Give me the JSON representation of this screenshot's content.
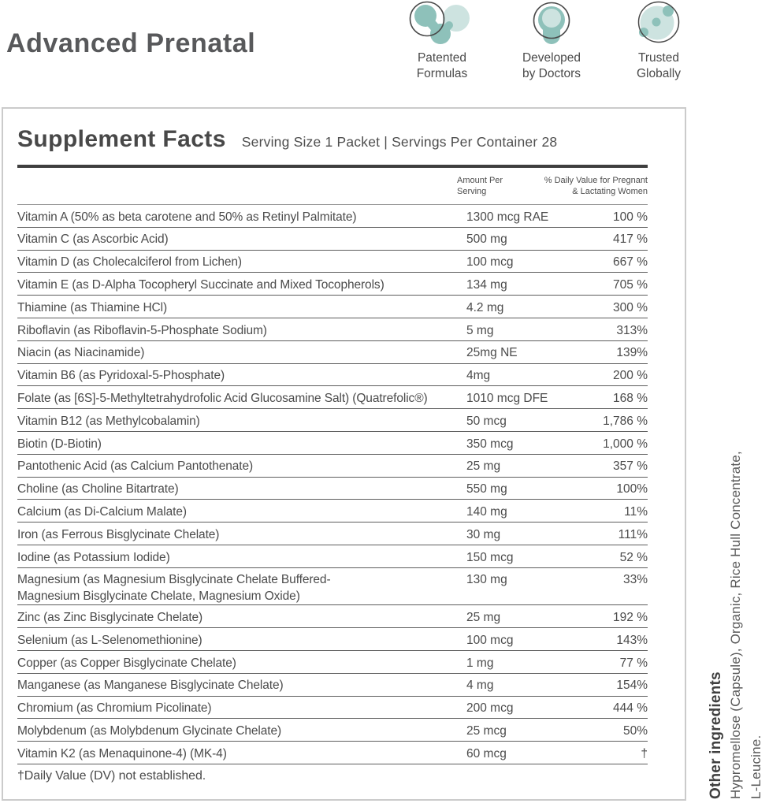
{
  "page": {
    "title": "Advanced Prenatal"
  },
  "badges": [
    {
      "icon": "molecule-icon",
      "label": "Patented Formulas"
    },
    {
      "icon": "doctor-icon",
      "label": "Developed by Doctors"
    },
    {
      "icon": "globe-icon",
      "label": "Trusted Globally"
    }
  ],
  "panel": {
    "title": "Supplement Facts",
    "serving_info": "Serving Size 1 Packet | Servings Per Container 28",
    "columns": {
      "amount_line1": "Amount Per",
      "amount_line2": "Serving",
      "dv_line1": "% Daily Value for Pregnant",
      "dv_line2": "& Lactating Women"
    },
    "rows": [
      {
        "name": "Vitamin A (50% as beta carotene and 50% as Retinyl Palmitate)",
        "amount": "1300 mcg RAE",
        "dv": "100 %"
      },
      {
        "name": "Vitamin C (as Ascorbic Acid)",
        "amount": "500 mg",
        "dv": "417 %"
      },
      {
        "name": "Vitamin D (as Cholecalciferol from Lichen)",
        "amount": "100 mcg",
        "dv": "667 %"
      },
      {
        "name": "Vitamin E (as D-Alpha Tocopheryl Succinate and Mixed Tocopherols)",
        "amount": "134 mg",
        "dv": "705 %"
      },
      {
        "name": "Thiamine (as Thiamine HCl)",
        "amount": "4.2 mg",
        "dv": "300 %"
      },
      {
        "name": "Riboflavin (as Riboflavin-5-Phosphate Sodium)",
        "amount": "5 mg",
        "dv": "313%"
      },
      {
        "name": "Niacin (as Niacinamide)",
        "amount": "25mg NE",
        "dv": "139%"
      },
      {
        "name": "Vitamin B6 (as Pyridoxal-5-Phosphate)",
        "amount": "4mg",
        "dv": "200 %"
      },
      {
        "name": "Folate (as [6S]-5-Methyltetrahydrofolic Acid Glucosamine Salt) (Quatrefolic®)",
        "amount": "1010 mcg DFE",
        "dv": "168 %"
      },
      {
        "name": "Vitamin B12 (as Methylcobalamin)",
        "amount": "50 mcg",
        "dv": "1,786 %"
      },
      {
        "name": "Biotin (D-Biotin)",
        "amount": "350 mcg",
        "dv": "1,000 %"
      },
      {
        "name": "Pantothenic Acid (as Calcium Pantothenate)",
        "amount": "25 mg",
        "dv": "357 %"
      },
      {
        "name": "Choline (as Choline Bitartrate)",
        "amount": "550 mg",
        "dv": "100%"
      },
      {
        "name": "Calcium (as Di-Calcium Malate)",
        "amount": "140 mg",
        "dv": "11%"
      },
      {
        "name": "Iron (as Ferrous Bisglycinate Chelate)",
        "amount": "30 mg",
        "dv": "111%"
      },
      {
        "name": "Iodine (as Potassium Iodide)",
        "amount": "150 mcg",
        "dv": "52 %"
      },
      {
        "name": "Magnesium (as Magnesium Bisglycinate Chelate Buffered-\nMagnesium Bisglycinate Chelate, Magnesium Oxide)",
        "amount": "130 mg",
        "dv": "33%"
      },
      {
        "name": "Zinc (as Zinc Bisglycinate Chelate)",
        "amount": "25 mg",
        "dv": "192 %"
      },
      {
        "name": "Selenium (as L-Selenomethionine)",
        "amount": "100 mcg",
        "dv": "143%"
      },
      {
        "name": "Copper (as Copper Bisglycinate Chelate)",
        "amount": "1 mg",
        "dv": "77 %"
      },
      {
        "name": "Manganese (as Manganese Bisglycinate Chelate)",
        "amount": "4 mg",
        "dv": "154%"
      },
      {
        "name": "Chromium (as Chromium Picolinate)",
        "amount": "200 mcg",
        "dv": "444 %"
      },
      {
        "name": "Molybdenum (as Molybdenum Glycinate Chelate)",
        "amount": "25 mcg",
        "dv": "50%"
      },
      {
        "name": "Vitamin K2 (as Menaquinone-4) (MK-4)",
        "amount": "60 mcg",
        "dv": "†"
      }
    ],
    "footnote": "†Daily Value (DV) not established."
  },
  "side_note": {
    "heading": "Other ingredients",
    "line1": "Hypromellose (Capsule), Organic, Rice Hull Concentrate,",
    "line2": "L-Leucine."
  },
  "colors": {
    "teal": "#8ec1ba",
    "teal_light": "#cde3e0",
    "outline_gray": "#4a4a4a",
    "text_dark": "#4b4b4b",
    "separator": "#5d5d5d",
    "panel_border": "#cbcbcb"
  }
}
